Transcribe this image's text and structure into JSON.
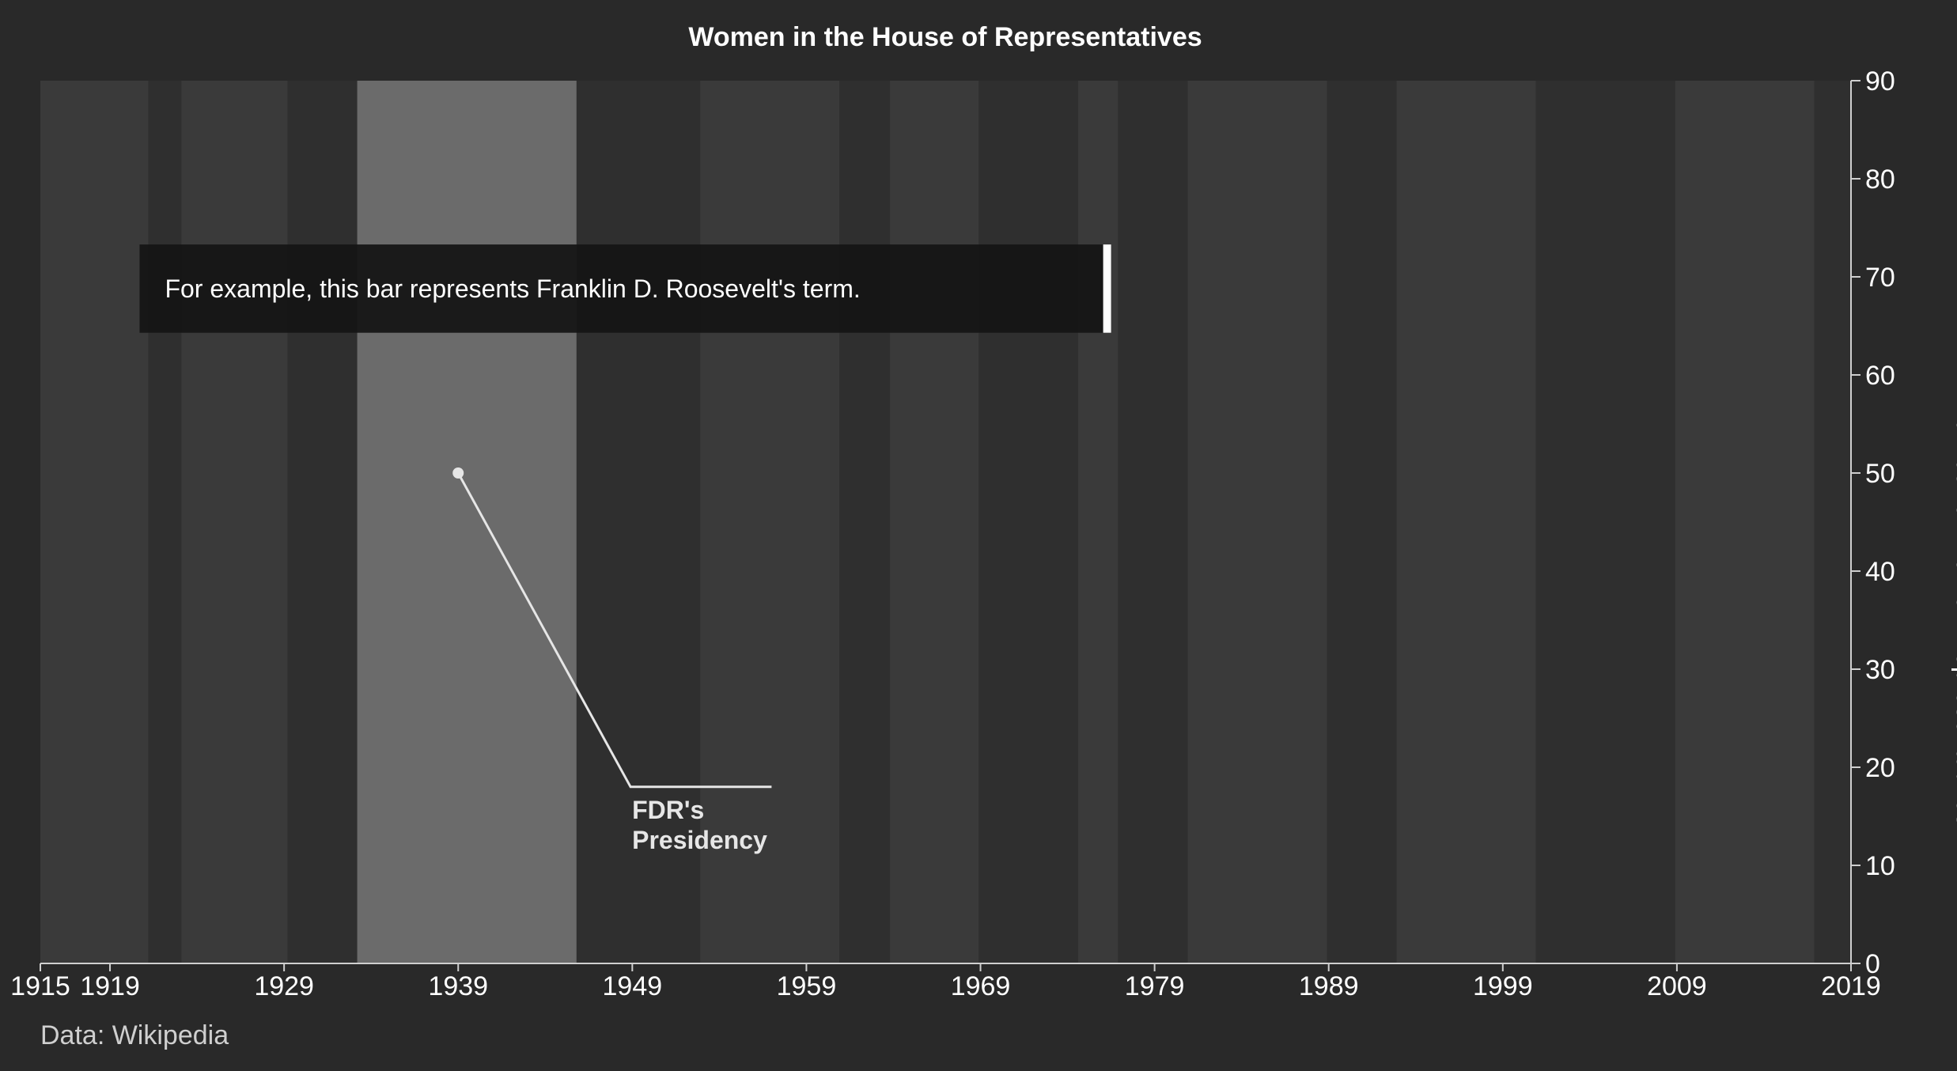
{
  "chart_data": {
    "type": "bar",
    "title": "Women in the House of Representatives",
    "ylabel": "Number of Women Representatives",
    "xlim": [
      1915,
      2019
    ],
    "ylim": [
      0,
      90
    ],
    "xticks": [
      1915,
      1919,
      1929,
      1939,
      1949,
      1959,
      1969,
      1979,
      1989,
      1999,
      2009,
      2019
    ],
    "yticks": [
      0,
      10,
      20,
      30,
      40,
      50,
      60,
      70,
      80,
      90
    ],
    "grid": false,
    "presidential_terms": [
      {
        "start": 1915.0,
        "end": 1921.2,
        "shade": "#3a3a3a"
      },
      {
        "start": 1921.2,
        "end": 1923.1,
        "shade": "#2f2f2f"
      },
      {
        "start": 1923.1,
        "end": 1929.2,
        "shade": "#3a3a3a"
      },
      {
        "start": 1929.2,
        "end": 1933.2,
        "shade": "#2f2f2f"
      },
      {
        "start": 1933.2,
        "end": 1945.8,
        "shade": "#6b6b6b",
        "highlight": true
      },
      {
        "start": 1945.8,
        "end": 1952.9,
        "shade": "#2f2f2f"
      },
      {
        "start": 1952.9,
        "end": 1960.9,
        "shade": "#3a3a3a"
      },
      {
        "start": 1960.9,
        "end": 1963.8,
        "shade": "#2f2f2f"
      },
      {
        "start": 1963.8,
        "end": 1968.9,
        "shade": "#3a3a3a"
      },
      {
        "start": 1968.9,
        "end": 1974.6,
        "shade": "#2f2f2f"
      },
      {
        "start": 1974.6,
        "end": 1976.9,
        "shade": "#3a3a3a"
      },
      {
        "start": 1976.9,
        "end": 1980.9,
        "shade": "#2f2f2f"
      },
      {
        "start": 1980.9,
        "end": 1988.9,
        "shade": "#3a3a3a"
      },
      {
        "start": 1988.9,
        "end": 1992.9,
        "shade": "#2f2f2f"
      },
      {
        "start": 1992.9,
        "end": 2000.9,
        "shade": "#3a3a3a"
      },
      {
        "start": 2000.9,
        "end": 2008.9,
        "shade": "#2f2f2f"
      },
      {
        "start": 2008.9,
        "end": 2016.9,
        "shade": "#3a3a3a"
      },
      {
        "start": 2016.9,
        "end": 2019.0,
        "shade": "#2f2f2f"
      }
    ],
    "annotation": {
      "lines": [
        "FDR's",
        "Presidency"
      ],
      "point": {
        "x": 1939,
        "y": 50
      },
      "elbow": {
        "x": 1948.9,
        "y": 18
      },
      "end": {
        "x": 1957,
        "y": 18
      }
    },
    "tooltip": {
      "text": "For example, this bar represents Franklin D. Roosevelt's term.",
      "x_start": 1920.7,
      "x_end": 1976.5,
      "y_top": 73.3,
      "y_bottom": 64.3
    },
    "source": "Data: Wikipedia"
  },
  "colors": {
    "background": "#292929",
    "axis": "#cfcfcf",
    "text": "#ffffff",
    "tooltip_bg": "#141414",
    "tooltip_accent": "#ffffff"
  }
}
